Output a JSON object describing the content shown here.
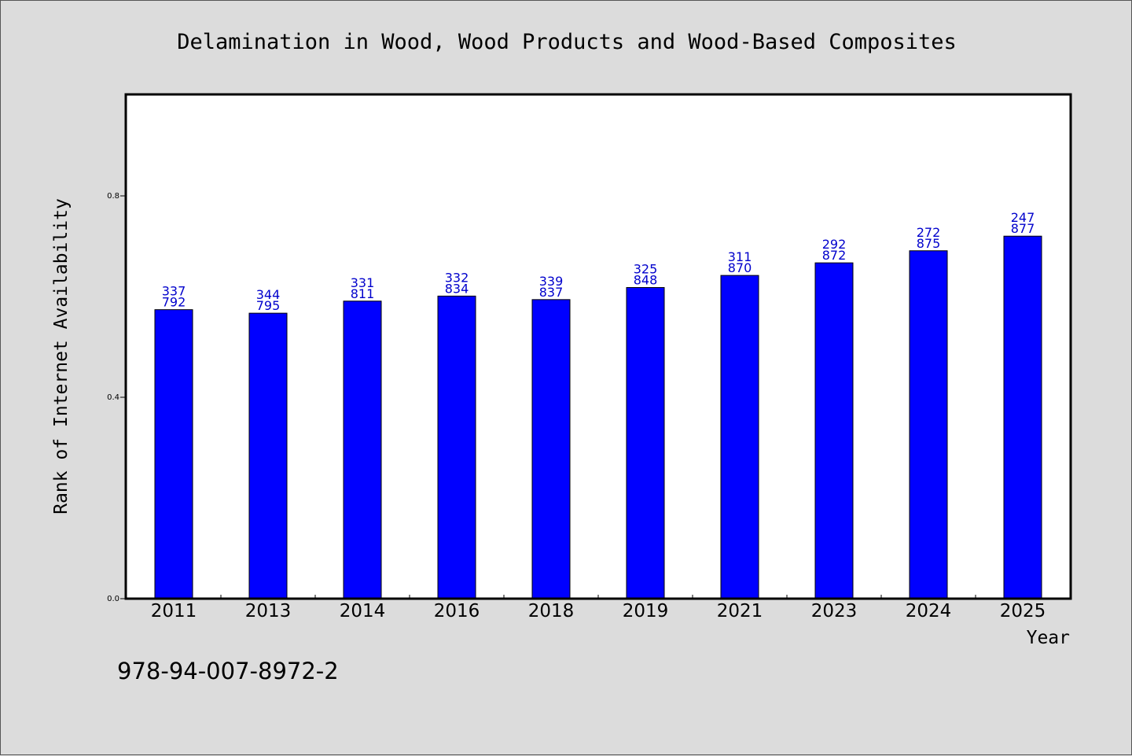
{
  "chart_data": {
    "type": "bar",
    "title": "Delamination in Wood, Wood Products and Wood-Based Composites",
    "xlabel": "Year",
    "ylabel": "Rank of Internet Availability",
    "categories": [
      "2011",
      "2013",
      "2014",
      "2016",
      "2018",
      "2019",
      "2021",
      "2023",
      "2024",
      "2025"
    ],
    "values": [
      0.574,
      0.567,
      0.591,
      0.601,
      0.594,
      0.618,
      0.642,
      0.667,
      0.691,
      0.72
    ],
    "data_labels": [
      [
        "337",
        "792"
      ],
      [
        "344",
        "795"
      ],
      [
        "331",
        "811"
      ],
      [
        "332",
        "834"
      ],
      [
        "339",
        "837"
      ],
      [
        "325",
        "848"
      ],
      [
        "311",
        "870"
      ],
      [
        "292",
        "872"
      ],
      [
        "272",
        "875"
      ],
      [
        "247",
        "877"
      ]
    ],
    "ylim": [
      0,
      1.0
    ],
    "yticks": [
      0.0,
      0.4,
      0.8
    ],
    "ytick_labels": [
      "0.0",
      "0.4",
      "0.8"
    ],
    "grid": false,
    "legend": "none",
    "bar_color": "#0000ff",
    "label_color": "#0000cc",
    "background": "#dcdcdc",
    "plot_background": "#ffffff"
  },
  "footnote": "978-94-007-8972-2"
}
